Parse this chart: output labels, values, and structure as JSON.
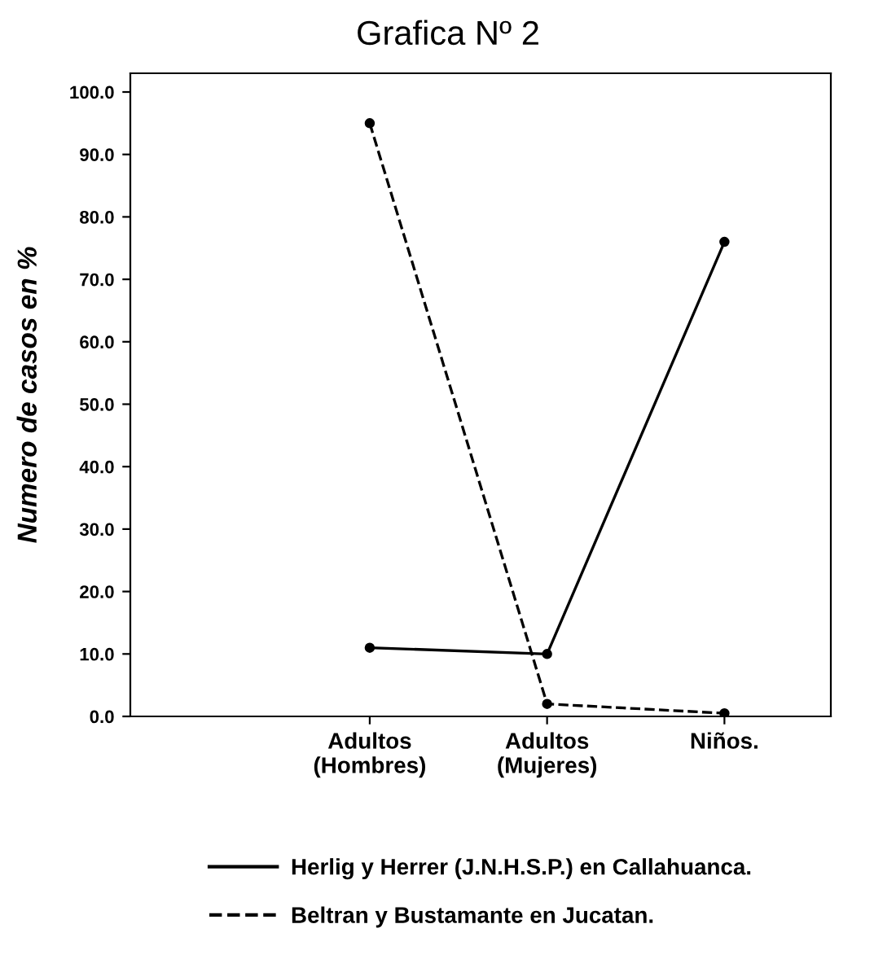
{
  "chart_data": {
    "type": "line",
    "title": "Grafica Nº 2",
    "ylabel": "Numero de casos en %",
    "categories": [
      "Adultos\n(Hombres)",
      "Adultos\n(Mujeres)",
      "Niños."
    ],
    "series": [
      {
        "name": "Herlig y Herrer (J.N.H.S.P.) en Callahuanca.",
        "color": "#000000",
        "values": [
          11,
          10,
          76
        ],
        "line_style": "solid"
      },
      {
        "name": "Beltran y Bustamante en Jucatan.",
        "color": "#000000",
        "values": [
          95,
          2,
          0.5
        ],
        "line_style": "dashed"
      }
    ],
    "ylim": [
      0,
      103
    ],
    "yticks": [
      {
        "value": 0,
        "label": "0.0"
      },
      {
        "value": 10,
        "label": "10.0"
      },
      {
        "value": 20,
        "label": "20.0"
      },
      {
        "value": 30,
        "label": "30.0"
      },
      {
        "value": 40,
        "label": "40.0"
      },
      {
        "value": 50,
        "label": "50.0"
      },
      {
        "value": 60,
        "label": "60.0"
      },
      {
        "value": 70,
        "label": "70.0"
      },
      {
        "value": 80,
        "label": "80.0"
      },
      {
        "value": 90,
        "label": "90.0"
      },
      {
        "value": 100,
        "label": "100.0"
      }
    ],
    "marker": "circle",
    "grid": false,
    "legend": "bottom"
  }
}
